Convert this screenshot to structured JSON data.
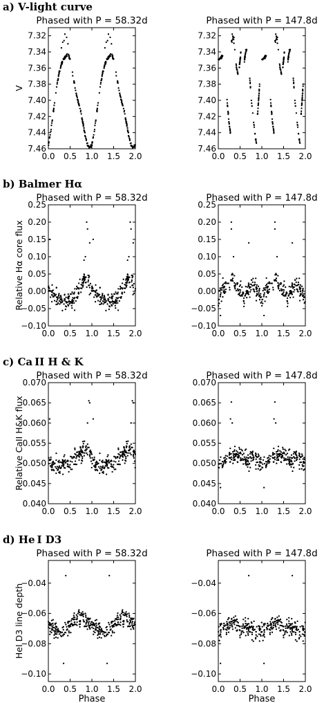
{
  "sections": [
    {
      "label": "a) V-light curve"
    },
    {
      "label": "b) Balmer Hα"
    },
    {
      "label": "c) Ca II H & K"
    },
    {
      "label": "d) He I D3"
    }
  ],
  "chart_data": [
    {
      "type": "scatter",
      "section": "a",
      "title": "Phased with P = 58.32d",
      "xlabel": "",
      "ylabel": "V",
      "xlim": [
        0,
        2
      ],
      "ylim": [
        7.46,
        7.31
      ],
      "y_inverted": true,
      "xticks": [
        0,
        0.5,
        1,
        1.5,
        2
      ],
      "xtick_labels": [
        "0.0",
        "0.5",
        "1.0",
        "1.5",
        "2.0"
      ],
      "yticks": [
        7.32,
        7.34,
        7.36,
        7.38,
        7.4,
        7.42,
        7.44,
        7.46
      ],
      "ytick_labels": [
        "7.32",
        "7.34",
        "7.36",
        "7.38",
        "7.40",
        "7.42",
        "7.44",
        "7.46"
      ],
      "curve": [
        [
          0,
          7.455
        ],
        [
          0.05,
          7.44
        ],
        [
          0.1,
          7.42
        ],
        [
          0.15,
          7.4
        ],
        [
          0.2,
          7.38
        ],
        [
          0.25,
          7.365
        ],
        [
          0.3,
          7.355
        ],
        [
          0.35,
          7.35
        ],
        [
          0.4,
          7.345
        ],
        [
          0.45,
          7.342
        ],
        [
          0.5,
          7.35
        ],
        [
          0.55,
          7.365
        ],
        [
          0.6,
          7.38
        ],
        [
          0.65,
          7.395
        ],
        [
          0.7,
          7.405
        ],
        [
          0.75,
          7.415
        ],
        [
          0.8,
          7.43
        ],
        [
          0.85,
          7.445
        ],
        [
          0.9,
          7.455
        ],
        [
          0.95,
          7.46
        ],
        [
          1.0,
          7.455
        ]
      ],
      "highlights": [
        [
          0.38,
          7.318
        ],
        [
          0.42,
          7.322
        ],
        [
          0.45,
          7.33
        ],
        [
          0.33,
          7.328
        ],
        [
          0.3,
          7.335
        ],
        [
          0.36,
          7.326
        ]
      ]
    },
    {
      "type": "scatter",
      "section": "a",
      "title": "Phased with P = 147.8d",
      "xlabel": "",
      "ylabel": "",
      "xlim": [
        0,
        2
      ],
      "ylim": [
        7.46,
        7.31
      ],
      "y_inverted": true,
      "xticks": [
        0,
        0.5,
        1,
        1.5,
        2
      ],
      "xtick_labels": [
        "0.0",
        "0.5",
        "1.0",
        "1.5",
        "2.0"
      ],
      "yticks": [
        7.32,
        7.34,
        7.36,
        7.38,
        7.4,
        7.42,
        7.44,
        7.46
      ],
      "ytick_labels": [
        "7.32",
        "7.34",
        "7.36",
        "7.38",
        "7.40",
        "7.42",
        "7.44",
        "7.46"
      ],
      "segments": [
        [
          [
            0.0,
            7.35
          ],
          [
            0.1,
            7.345
          ]
        ],
        [
          [
            0.2,
            7.4
          ],
          [
            0.25,
            7.43
          ],
          [
            0.28,
            7.44
          ]
        ],
        [
          [
            0.3,
            7.33
          ],
          [
            0.34,
            7.32
          ],
          [
            0.38,
            7.34
          ],
          [
            0.42,
            7.36
          ],
          [
            0.46,
            7.37
          ]
        ],
        [
          [
            0.48,
            7.36
          ],
          [
            0.52,
            7.34
          ]
        ],
        [
          [
            0.6,
            7.35
          ],
          [
            0.63,
            7.34
          ],
          [
            0.66,
            7.335
          ]
        ],
        [
          [
            0.72,
            7.37
          ],
          [
            0.76,
            7.4
          ],
          [
            0.8,
            7.42
          ],
          [
            0.84,
            7.44
          ],
          [
            0.88,
            7.455
          ]
        ],
        [
          [
            0.9,
            7.42
          ],
          [
            0.95,
            7.38
          ]
        ]
      ],
      "highlights": [
        [
          0.32,
          7.318
        ],
        [
          0.36,
          7.322
        ]
      ]
    },
    {
      "type": "scatter",
      "section": "b",
      "title": "Phased with P = 58.32d",
      "xlabel": "",
      "ylabel": "Relative Hα core flux",
      "xlim": [
        0,
        2
      ],
      "ylim": [
        -0.1,
        0.25
      ],
      "xticks": [
        0,
        0.5,
        1,
        1.5,
        2
      ],
      "xtick_labels": [
        "0.0",
        "0.5",
        "1.0",
        "1.5",
        "2.0"
      ],
      "yticks": [
        -0.1,
        -0.05,
        0,
        0.05,
        0.1,
        0.15,
        0.2,
        0.25
      ],
      "ytick_labels": [
        "−0.10",
        "−0.05",
        "0.00",
        "0.05",
        "0.10",
        "0.15",
        "0.20",
        "0.25"
      ],
      "curve": [
        [
          0,
          0.0
        ],
        [
          0.1,
          -0.01
        ],
        [
          0.2,
          -0.02
        ],
        [
          0.3,
          -0.025
        ],
        [
          0.4,
          -0.03
        ],
        [
          0.5,
          -0.03
        ],
        [
          0.6,
          -0.02
        ],
        [
          0.7,
          0.0
        ],
        [
          0.8,
          0.03
        ],
        [
          0.9,
          0.04
        ],
        [
          1.0,
          0.0
        ]
      ],
      "highlights": [
        [
          0.88,
          0.2
        ],
        [
          0.9,
          0.18
        ],
        [
          0.95,
          0.14
        ],
        [
          0.03,
          0.15
        ],
        [
          0.85,
          0.1
        ],
        [
          0.82,
          0.09
        ]
      ]
    },
    {
      "type": "scatter",
      "section": "b",
      "title": "Phased with P = 147.8d",
      "xlabel": "",
      "ylabel": "",
      "xlim": [
        0,
        2
      ],
      "ylim": [
        -0.1,
        0.25
      ],
      "xticks": [
        0,
        0.5,
        1,
        1.5,
        2
      ],
      "xtick_labels": [
        "0.0",
        "0.5",
        "1.0",
        "1.5",
        "2.0"
      ],
      "yticks": [
        -0.1,
        -0.05,
        0,
        0.05,
        0.1,
        0.15,
        0.2,
        0.25
      ],
      "ytick_labels": [
        "−0.10",
        "−0.05",
        "0.00",
        "0.05",
        "0.10",
        "0.15",
        "0.20",
        "0.25"
      ],
      "curve": [
        [
          0,
          -0.02
        ],
        [
          0.1,
          0.0
        ],
        [
          0.2,
          0.01
        ],
        [
          0.3,
          0.03
        ],
        [
          0.4,
          0.01
        ],
        [
          0.5,
          0.0
        ],
        [
          0.6,
          -0.01
        ],
        [
          0.7,
          0.01
        ],
        [
          0.8,
          0.02
        ],
        [
          0.9,
          0.0
        ],
        [
          1.0,
          -0.02
        ]
      ],
      "highlights": [
        [
          0.3,
          0.2
        ],
        [
          0.3,
          0.18
        ],
        [
          0.35,
          0.1
        ],
        [
          0.7,
          0.14
        ],
        [
          0.05,
          -0.07
        ]
      ]
    },
    {
      "type": "scatter",
      "section": "c",
      "title": "Phased with P = 58.32d",
      "xlabel": "",
      "ylabel": "Relative CaII H&K flux",
      "xlim": [
        0,
        2
      ],
      "ylim": [
        0.04,
        0.07
      ],
      "xticks": [
        0,
        0.5,
        1,
        1.5,
        2
      ],
      "xtick_labels": [
        "0.0",
        "0.5",
        "1.0",
        "1.5",
        "2.0"
      ],
      "yticks": [
        0.04,
        0.045,
        0.05,
        0.055,
        0.06,
        0.065,
        0.07
      ],
      "ytick_labels": [
        "0.040",
        "0.045",
        "0.050",
        "0.055",
        "0.060",
        "0.065",
        "0.070"
      ],
      "curve": [
        [
          0,
          0.051
        ],
        [
          0.1,
          0.05
        ],
        [
          0.2,
          0.049
        ],
        [
          0.3,
          0.049
        ],
        [
          0.4,
          0.05
        ],
        [
          0.5,
          0.05
        ],
        [
          0.6,
          0.051
        ],
        [
          0.7,
          0.052
        ],
        [
          0.8,
          0.053
        ],
        [
          0.9,
          0.054
        ],
        [
          1.0,
          0.051
        ]
      ],
      "highlights": [
        [
          0.93,
          0.0655
        ],
        [
          0.95,
          0.065
        ],
        [
          0.9,
          0.06
        ],
        [
          0.03,
          0.061
        ]
      ]
    },
    {
      "type": "scatter",
      "section": "c",
      "title": "Phased with P = 147.8d",
      "xlabel": "",
      "ylabel": "",
      "xlim": [
        0,
        2
      ],
      "ylim": [
        0.04,
        0.07
      ],
      "xticks": [
        0,
        0.5,
        1,
        1.5,
        2
      ],
      "xtick_labels": [
        "0.0",
        "0.5",
        "1.0",
        "1.5",
        "2.0"
      ],
      "yticks": [
        0.04,
        0.045,
        0.05,
        0.055,
        0.06,
        0.065,
        0.07
      ],
      "ytick_labels": [
        "0.040",
        "0.045",
        "0.050",
        "0.055",
        "0.060",
        "0.065",
        "0.070"
      ],
      "curve": [
        [
          0,
          0.05
        ],
        [
          0.1,
          0.05
        ],
        [
          0.2,
          0.051
        ],
        [
          0.3,
          0.052
        ],
        [
          0.4,
          0.052
        ],
        [
          0.5,
          0.052
        ],
        [
          0.6,
          0.051
        ],
        [
          0.7,
          0.051
        ],
        [
          0.8,
          0.052
        ],
        [
          0.9,
          0.051
        ],
        [
          1.0,
          0.05
        ]
      ],
      "highlights": [
        [
          0.3,
          0.0652
        ],
        [
          0.32,
          0.06
        ],
        [
          0.28,
          0.061
        ],
        [
          0.05,
          0.044
        ]
      ]
    },
    {
      "type": "scatter",
      "section": "d",
      "title": "Phased with P = 58.32d",
      "xlabel": "Phase",
      "ylabel": "HeI D3 line depth",
      "xlim": [
        0,
        2
      ],
      "ylim": [
        -0.105,
        -0.025
      ],
      "xticks": [
        0,
        0.5,
        1,
        1.5,
        2
      ],
      "xtick_labels": [
        "0.0",
        "0.5",
        "1.0",
        "1.5",
        "2.0"
      ],
      "yticks": [
        -0.1,
        -0.08,
        -0.06,
        -0.04
      ],
      "ytick_labels": [
        "−0.10",
        "−0.08",
        "−0.06",
        "−0.04"
      ],
      "curve": [
        [
          0,
          -0.068
        ],
        [
          0.1,
          -0.07
        ],
        [
          0.2,
          -0.072
        ],
        [
          0.3,
          -0.074
        ],
        [
          0.4,
          -0.072
        ],
        [
          0.5,
          -0.068
        ],
        [
          0.6,
          -0.065
        ],
        [
          0.7,
          -0.063
        ],
        [
          0.8,
          -0.064
        ],
        [
          0.9,
          -0.066
        ],
        [
          1.0,
          -0.068
        ]
      ],
      "highlights": [
        [
          0.4,
          -0.035
        ],
        [
          0.35,
          -0.093
        ]
      ]
    },
    {
      "type": "scatter",
      "section": "d",
      "title": "Phased with P = 147.8d",
      "xlabel": "Phase",
      "ylabel": "",
      "xlim": [
        0,
        2
      ],
      "ylim": [
        -0.105,
        -0.025
      ],
      "xticks": [
        0,
        0.5,
        1,
        1.5,
        2
      ],
      "xtick_labels": [
        "0.0",
        "0.5",
        "1.0",
        "1.5",
        "2.0"
      ],
      "yticks": [
        -0.1,
        -0.08,
        -0.06,
        -0.04
      ],
      "ytick_labels": [
        "−0.10",
        "−0.08",
        "−0.06",
        "−0.04"
      ],
      "curve": [
        [
          0,
          -0.072
        ],
        [
          0.1,
          -0.07
        ],
        [
          0.2,
          -0.068
        ],
        [
          0.3,
          -0.066
        ],
        [
          0.4,
          -0.068
        ],
        [
          0.5,
          -0.07
        ],
        [
          0.6,
          -0.069
        ],
        [
          0.7,
          -0.07
        ],
        [
          0.8,
          -0.071
        ],
        [
          0.9,
          -0.072
        ],
        [
          1.0,
          -0.072
        ]
      ],
      "highlights": [
        [
          0.7,
          -0.035
        ],
        [
          0.05,
          -0.093
        ]
      ]
    }
  ]
}
